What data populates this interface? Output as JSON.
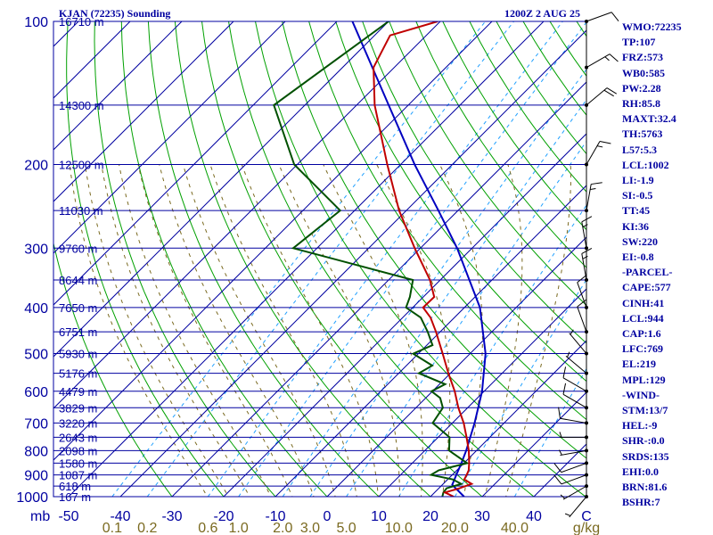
{
  "header": {
    "station": "KJAN (72235) Sounding",
    "time": "1200Z  2 AUG 25"
  },
  "indices": [
    "WMO:72235",
    "TP:107",
    "FRZ:573",
    "WB0:585",
    "PW:2.28",
    "RH:85.8",
    "MAXT:32.4",
    "TH:5763",
    "L57:5.3",
    "LCL:1002",
    "LI:-1.9",
    "SI:-0.5",
    "TT:45",
    "KI:36",
    "SW:220",
    "EI:-0.8",
    "-PARCEL-",
    "CAPE:577",
    "CINH:41",
    "LCL:944",
    "CAP:1.6",
    "LFC:769",
    "EL:219",
    "MPL:129",
    "-WIND-",
    "STM:13/7",
    "HEL:-9",
    "SHR-:0.0",
    "SRDS:135",
    "EHI:0.0",
    "BRN:81.6",
    "BSHR:7"
  ],
  "colors": {
    "frame": "#0000a0",
    "isobar": "#0000a0",
    "isotherm": "#0000a0",
    "dry_adiabat": "#00a000",
    "moist_adiabat": "#7a6a20",
    "mixing_ratio": "#20a0ff",
    "temperature": "#c00000",
    "dewpoint": "#005000",
    "parcel": "#0000c0",
    "wind_barb": "#000000"
  },
  "chart_data": {
    "type": "skew-t log-p sounding",
    "pressure_axis": {
      "unit_label": "mb",
      "levels": [
        100,
        200,
        300,
        400,
        500,
        600,
        700,
        800,
        900,
        1000
      ],
      "tick_labels": [
        "100",
        "200",
        "300",
        "400",
        "500",
        "600",
        "700",
        "800",
        "900",
        "1000"
      ]
    },
    "temperature_axis": {
      "ticks": [
        -50,
        -40,
        -30,
        -20,
        -10,
        0,
        10,
        20,
        30,
        40
      ],
      "tick_labels": [
        "-50",
        "-40",
        "-30",
        "-20",
        "-10",
        "0",
        "10",
        "20",
        "30",
        "40"
      ],
      "unit_label": "C"
    },
    "mixing_ratio_axis": {
      "values": [
        0.1,
        0.2,
        0.6,
        1.0,
        2.0,
        3.0,
        5.0,
        10.0,
        20.0,
        40.0
      ],
      "tick_labels": [
        "0.1",
        "0.2",
        "0.6",
        "1.0",
        "2.0",
        "3.0",
        "5.0",
        "10.0",
        "20.0",
        "40.0"
      ],
      "unit_label": "g/kg"
    },
    "height_labels": [
      {
        "p": 100,
        "label": "16710 m"
      },
      {
        "p": 150,
        "label": "14300 m"
      },
      {
        "p": 200,
        "label": "12500 m"
      },
      {
        "p": 250,
        "label": "11030 m"
      },
      {
        "p": 300,
        "label": "9760 m"
      },
      {
        "p": 350,
        "label": "8644 m"
      },
      {
        "p": 400,
        "label": "7650 m"
      },
      {
        "p": 450,
        "label": "6751 m"
      },
      {
        "p": 500,
        "label": "5930 m"
      },
      {
        "p": 550,
        "label": "5176 m"
      },
      {
        "p": 600,
        "label": "4479 m"
      },
      {
        "p": 650,
        "label": "3829 m"
      },
      {
        "p": 700,
        "label": "3220 m"
      },
      {
        "p": 750,
        "label": "2643 m"
      },
      {
        "p": 800,
        "label": "2098 m"
      },
      {
        "p": 850,
        "label": "1580 m"
      },
      {
        "p": 900,
        "label": "1087 m"
      },
      {
        "p": 950,
        "label": "618 m"
      },
      {
        "p": 1000,
        "label": "167 m"
      }
    ],
    "temperature": [
      [
        1000,
        24.5
      ],
      [
        980,
        22.0
      ],
      [
        960,
        24.0
      ],
      [
        940,
        25.5
      ],
      [
        920,
        23.2
      ],
      [
        900,
        22.8
      ],
      [
        880,
        22.3
      ],
      [
        850,
        21.0
      ],
      [
        800,
        18.5
      ],
      [
        750,
        15.5
      ],
      [
        700,
        12.2
      ],
      [
        650,
        8.2
      ],
      [
        600,
        4.3
      ],
      [
        550,
        -0.4
      ],
      [
        500,
        -5.3
      ],
      [
        450,
        -10.8
      ],
      [
        420,
        -14.6
      ],
      [
        400,
        -18.0
      ],
      [
        380,
        -17.9
      ],
      [
        350,
        -22.0
      ],
      [
        300,
        -31.1
      ],
      [
        250,
        -41.4
      ],
      [
        200,
        -52.6
      ],
      [
        150,
        -66.5
      ],
      [
        125,
        -74.0
      ],
      [
        107,
        -77.0
      ],
      [
        100,
        -70.5
      ]
    ],
    "dewpoint": [
      [
        1000,
        22.3
      ],
      [
        980,
        21.7
      ],
      [
        960,
        21.5
      ],
      [
        940,
        23.5
      ],
      [
        920,
        21.0
      ],
      [
        900,
        15.9
      ],
      [
        880,
        16.5
      ],
      [
        850,
        20.6
      ],
      [
        800,
        14.7
      ],
      [
        750,
        12.2
      ],
      [
        700,
        6.2
      ],
      [
        650,
        5.2
      ],
      [
        620,
        2.8
      ],
      [
        600,
        -0.2
      ],
      [
        580,
        1.1
      ],
      [
        550,
        -6.1
      ],
      [
        530,
        -5.0
      ],
      [
        500,
        -11.0
      ],
      [
        480,
        -8.9
      ],
      [
        450,
        -12.4
      ],
      [
        420,
        -16.5
      ],
      [
        400,
        -21.3
      ],
      [
        380,
        -22.6
      ],
      [
        350,
        -25.3
      ],
      [
        300,
        -54.6
      ],
      [
        250,
        -52.8
      ],
      [
        200,
        -70.6
      ],
      [
        150,
        -86.0
      ],
      [
        100,
        -80.0
      ]
    ],
    "parcel": [
      [
        1000,
        26.5
      ],
      [
        944,
        21.9
      ],
      [
        900,
        20.8
      ],
      [
        850,
        19.5
      ],
      [
        800,
        18.0
      ],
      [
        700,
        14.3
      ],
      [
        600,
        9.6
      ],
      [
        500,
        3.0
      ],
      [
        400,
        -7.0
      ],
      [
        300,
        -22.9
      ],
      [
        250,
        -33.8
      ],
      [
        200,
        -47.3
      ],
      [
        150,
        -63.8
      ],
      [
        100,
        -87.0
      ]
    ],
    "wind_barbs": [
      {
        "p": 1000,
        "dir": 220,
        "spd": 5
      },
      {
        "p": 950,
        "dir": 240,
        "spd": 5
      },
      {
        "p": 900,
        "dir": 250,
        "spd": 10
      },
      {
        "p": 850,
        "dir": 250,
        "spd": 10
      },
      {
        "p": 800,
        "dir": 260,
        "spd": 5
      },
      {
        "p": 750,
        "dir": 270,
        "spd": 5
      },
      {
        "p": 700,
        "dir": 280,
        "spd": 10
      },
      {
        "p": 650,
        "dir": 300,
        "spd": 10
      },
      {
        "p": 600,
        "dir": 300,
        "spd": 10
      },
      {
        "p": 550,
        "dir": 310,
        "spd": 5
      },
      {
        "p": 500,
        "dir": 320,
        "spd": 5
      },
      {
        "p": 450,
        "dir": 340,
        "spd": 10
      },
      {
        "p": 400,
        "dir": 340,
        "spd": 10
      },
      {
        "p": 350,
        "dir": 350,
        "spd": 15
      },
      {
        "p": 300,
        "dir": 350,
        "spd": 15
      },
      {
        "p": 250,
        "dir": 10,
        "spd": 15
      },
      {
        "p": 200,
        "dir": 30,
        "spd": 15
      },
      {
        "p": 150,
        "dir": 50,
        "spd": 20
      },
      {
        "p": 125,
        "dir": 60,
        "spd": 15
      },
      {
        "p": 100,
        "dir": 70,
        "spd": 10
      }
    ]
  }
}
